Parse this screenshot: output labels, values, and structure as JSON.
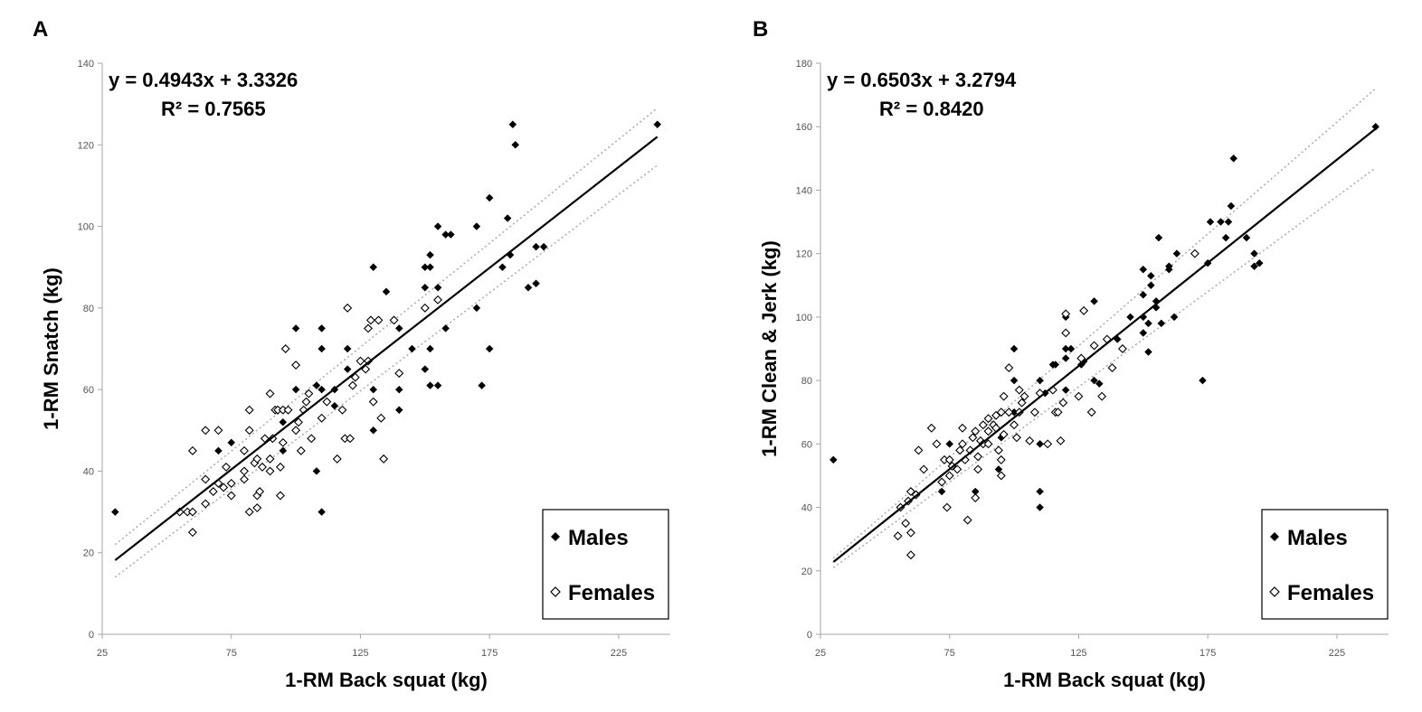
{
  "chart_data": [
    {
      "type": "scatter",
      "panel_label": "A",
      "title": "",
      "xlabel": "1-RM Back squat (kg)",
      "ylabel": "1-RM Snatch (kg)",
      "xlim": [
        25,
        245
      ],
      "ylim": [
        0,
        140
      ],
      "xticks": [
        25,
        75,
        125,
        175,
        225
      ],
      "yticks": [
        0,
        20,
        40,
        60,
        80,
        100,
        120,
        140
      ],
      "grid": false,
      "equation": "y = 0.4943x + 3.3326",
      "r_squared": "R² = 0.7565",
      "regression": {
        "slope": 0.4943,
        "intercept": 3.3326,
        "x_range": [
          30,
          240
        ]
      },
      "confidence_band": {
        "upper": [
          [
            30,
            22
          ],
          [
            240,
            129
          ]
        ],
        "lower": [
          [
            30,
            14
          ],
          [
            240,
            115
          ]
        ]
      },
      "legend": {
        "position": "bottom-right",
        "entries": [
          "Males",
          "Females"
        ]
      },
      "series": [
        {
          "name": "Males",
          "marker": "filled-diamond",
          "points": [
            [
              30,
              30
            ],
            [
              70,
              45
            ],
            [
              75,
              47
            ],
            [
              95,
              45
            ],
            [
              95,
              52
            ],
            [
              100,
              60
            ],
            [
              100,
              75
            ],
            [
              108,
              40
            ],
            [
              108,
              61
            ],
            [
              110,
              60
            ],
            [
              110,
              70
            ],
            [
              110,
              75
            ],
            [
              110,
              30
            ],
            [
              115,
              56
            ],
            [
              115,
              60
            ],
            [
              118,
              55
            ],
            [
              120,
              65
            ],
            [
              120,
              70
            ],
            [
              130,
              50
            ],
            [
              130,
              60
            ],
            [
              130,
              90
            ],
            [
              135,
              84
            ],
            [
              140,
              75
            ],
            [
              140,
              60
            ],
            [
              140,
              55
            ],
            [
              145,
              70
            ],
            [
              150,
              65
            ],
            [
              150,
              85
            ],
            [
              150,
              90
            ],
            [
              152,
              70
            ],
            [
              152,
              61
            ],
            [
              152,
              90
            ],
            [
              152,
              93
            ],
            [
              155,
              61
            ],
            [
              155,
              85
            ],
            [
              155,
              100
            ],
            [
              158,
              75
            ],
            [
              158,
              98
            ],
            [
              160,
              98
            ],
            [
              170,
              80
            ],
            [
              170,
              100
            ],
            [
              172,
              61
            ],
            [
              175,
              70
            ],
            [
              175,
              107
            ],
            [
              180,
              90
            ],
            [
              182,
              102
            ],
            [
              183,
              93
            ],
            [
              184,
              125
            ],
            [
              185,
              120
            ],
            [
              190,
              85
            ],
            [
              193,
              86
            ],
            [
              193,
              95
            ],
            [
              196,
              95
            ],
            [
              240,
              125
            ]
          ]
        },
        {
          "name": "Females",
          "marker": "open-diamond",
          "points": [
            [
              55,
              30
            ],
            [
              58,
              30
            ],
            [
              60,
              25
            ],
            [
              60,
              30
            ],
            [
              60,
              45
            ],
            [
              65,
              32
            ],
            [
              65,
              38
            ],
            [
              65,
              50
            ],
            [
              68,
              35
            ],
            [
              70,
              37
            ],
            [
              70,
              50
            ],
            [
              72,
              36
            ],
            [
              73,
              41
            ],
            [
              75,
              34
            ],
            [
              75,
              37
            ],
            [
              80,
              38
            ],
            [
              80,
              40
            ],
            [
              80,
              45
            ],
            [
              82,
              30
            ],
            [
              82,
              50
            ],
            [
              82,
              55
            ],
            [
              84,
              42
            ],
            [
              85,
              31
            ],
            [
              85,
              34
            ],
            [
              85,
              43
            ],
            [
              86,
              35
            ],
            [
              87,
              41
            ],
            [
              88,
              48
            ],
            [
              90,
              40
            ],
            [
              90,
              59
            ],
            [
              90,
              43
            ],
            [
              91,
              48
            ],
            [
              92,
              55
            ],
            [
              93,
              55
            ],
            [
              94,
              41
            ],
            [
              94,
              34
            ],
            [
              95,
              47
            ],
            [
              95,
              55
            ],
            [
              96,
              70
            ],
            [
              97,
              55
            ],
            [
              100,
              50
            ],
            [
              100,
              66
            ],
            [
              101,
              52
            ],
            [
              102,
              45
            ],
            [
              103,
              55
            ],
            [
              104,
              57
            ],
            [
              105,
              59
            ],
            [
              106,
              48
            ],
            [
              110,
              53
            ],
            [
              112,
              57
            ],
            [
              116,
              43
            ],
            [
              118,
              55
            ],
            [
              119,
              48
            ],
            [
              120,
              80
            ],
            [
              121,
              48
            ],
            [
              122,
              61
            ],
            [
              123,
              63
            ],
            [
              125,
              67
            ],
            [
              127,
              65
            ],
            [
              128,
              67
            ],
            [
              128,
              75
            ],
            [
              129,
              77
            ],
            [
              130,
              57
            ],
            [
              132,
              77
            ],
            [
              133,
              53
            ],
            [
              134,
              43
            ],
            [
              138,
              77
            ],
            [
              140,
              64
            ],
            [
              150,
              80
            ],
            [
              155,
              82
            ]
          ]
        }
      ]
    },
    {
      "type": "scatter",
      "panel_label": "B",
      "title": "",
      "xlabel": "1-RM Back squat (kg)",
      "ylabel": "1-RM Clean & Jerk (kg)",
      "xlim": [
        25,
        245
      ],
      "ylim": [
        0,
        180
      ],
      "xticks": [
        25,
        75,
        125,
        175,
        225
      ],
      "yticks": [
        0,
        20,
        40,
        60,
        80,
        100,
        120,
        140,
        160,
        180
      ],
      "grid": false,
      "equation": "y = 0.6503x + 3.2794",
      "r_squared": "R² = 0.8420",
      "regression": {
        "slope": 0.6503,
        "intercept": 3.2794,
        "x_range": [
          30,
          240
        ]
      },
      "confidence_band": {
        "upper": [
          [
            30,
            24
          ],
          [
            240,
            172
          ]
        ],
        "lower": [
          [
            30,
            21
          ],
          [
            240,
            147
          ]
        ]
      },
      "legend": {
        "position": "bottom-right",
        "entries": [
          "Males",
          "Females"
        ]
      },
      "series": [
        {
          "name": "Males",
          "marker": "filled-diamond",
          "points": [
            [
              30,
              55
            ],
            [
              72,
              45
            ],
            [
              75,
              60
            ],
            [
              85,
              45
            ],
            [
              94,
              52
            ],
            [
              95,
              62
            ],
            [
              100,
              70
            ],
            [
              100,
              80
            ],
            [
              100,
              90
            ],
            [
              110,
              40
            ],
            [
              110,
              45
            ],
            [
              110,
              60
            ],
            [
              110,
              80
            ],
            [
              112,
              76
            ],
            [
              115,
              85
            ],
            [
              116,
              85
            ],
            [
              120,
              77
            ],
            [
              120,
              87
            ],
            [
              120,
              90
            ],
            [
              120,
              100
            ],
            [
              122,
              90
            ],
            [
              126,
              85
            ],
            [
              127,
              86
            ],
            [
              131,
              80
            ],
            [
              131,
              105
            ],
            [
              133,
              79
            ],
            [
              134,
              75
            ],
            [
              140,
              93
            ],
            [
              145,
              100
            ],
            [
              150,
              95
            ],
            [
              150,
              100
            ],
            [
              150,
              107
            ],
            [
              150,
              115
            ],
            [
              152,
              89
            ],
            [
              152,
              98
            ],
            [
              153,
              110
            ],
            [
              153,
              113
            ],
            [
              155,
              103
            ],
            [
              155,
              105
            ],
            [
              156,
              125
            ],
            [
              157,
              98
            ],
            [
              160,
              115
            ],
            [
              160,
              116
            ],
            [
              162,
              100
            ],
            [
              163,
              120
            ],
            [
              173,
              80
            ],
            [
              175,
              117
            ],
            [
              176,
              130
            ],
            [
              180,
              130
            ],
            [
              182,
              125
            ],
            [
              183,
              130
            ],
            [
              184,
              135
            ],
            [
              185,
              150
            ],
            [
              190,
              125
            ],
            [
              193,
              116
            ],
            [
              193,
              120
            ],
            [
              195,
              117
            ],
            [
              240,
              160
            ]
          ]
        },
        {
          "name": "Females",
          "marker": "open-diamond",
          "points": [
            [
              55,
              31
            ],
            [
              56,
              40
            ],
            [
              58,
              35
            ],
            [
              60,
              25
            ],
            [
              60,
              32
            ],
            [
              59,
              42
            ],
            [
              60,
              45
            ],
            [
              62,
              44
            ],
            [
              63,
              58
            ],
            [
              65,
              52
            ],
            [
              68,
              65
            ],
            [
              70,
              60
            ],
            [
              72,
              48
            ],
            [
              73,
              55
            ],
            [
              74,
              40
            ],
            [
              75,
              50
            ],
            [
              75,
              55
            ],
            [
              76,
              53
            ],
            [
              78,
              52
            ],
            [
              79,
              58
            ],
            [
              80,
              60
            ],
            [
              80,
              65
            ],
            [
              81,
              55
            ],
            [
              82,
              36
            ],
            [
              83,
              58
            ],
            [
              84,
              62
            ],
            [
              85,
              64
            ],
            [
              85,
              43
            ],
            [
              86,
              56
            ],
            [
              86,
              52
            ],
            [
              87,
              61
            ],
            [
              88,
              60
            ],
            [
              88,
              66
            ],
            [
              90,
              60
            ],
            [
              90,
              64
            ],
            [
              90,
              68
            ],
            [
              92,
              66
            ],
            [
              93,
              65
            ],
            [
              93,
              69
            ],
            [
              94,
              58
            ],
            [
              95,
              50
            ],
            [
              95,
              55
            ],
            [
              95,
              70
            ],
            [
              96,
              63
            ],
            [
              96,
              75
            ],
            [
              98,
              70
            ],
            [
              98,
              84
            ],
            [
              100,
              66
            ],
            [
              101,
              62
            ],
            [
              102,
              70
            ],
            [
              102,
              77
            ],
            [
              103,
              73
            ],
            [
              104,
              75
            ],
            [
              106,
              61
            ],
            [
              108,
              70
            ],
            [
              110,
              76
            ],
            [
              113,
              60
            ],
            [
              115,
              77
            ],
            [
              116,
              70
            ],
            [
              117,
              70
            ],
            [
              118,
              61
            ],
            [
              119,
              73
            ],
            [
              120,
              95
            ],
            [
              120,
              101
            ],
            [
              125,
              75
            ],
            [
              126,
              87
            ],
            [
              127,
              102
            ],
            [
              130,
              70
            ],
            [
              131,
              91
            ],
            [
              134,
              75
            ],
            [
              136,
              93
            ],
            [
              138,
              84
            ],
            [
              142,
              90
            ],
            [
              170,
              120
            ]
          ]
        }
      ]
    }
  ]
}
